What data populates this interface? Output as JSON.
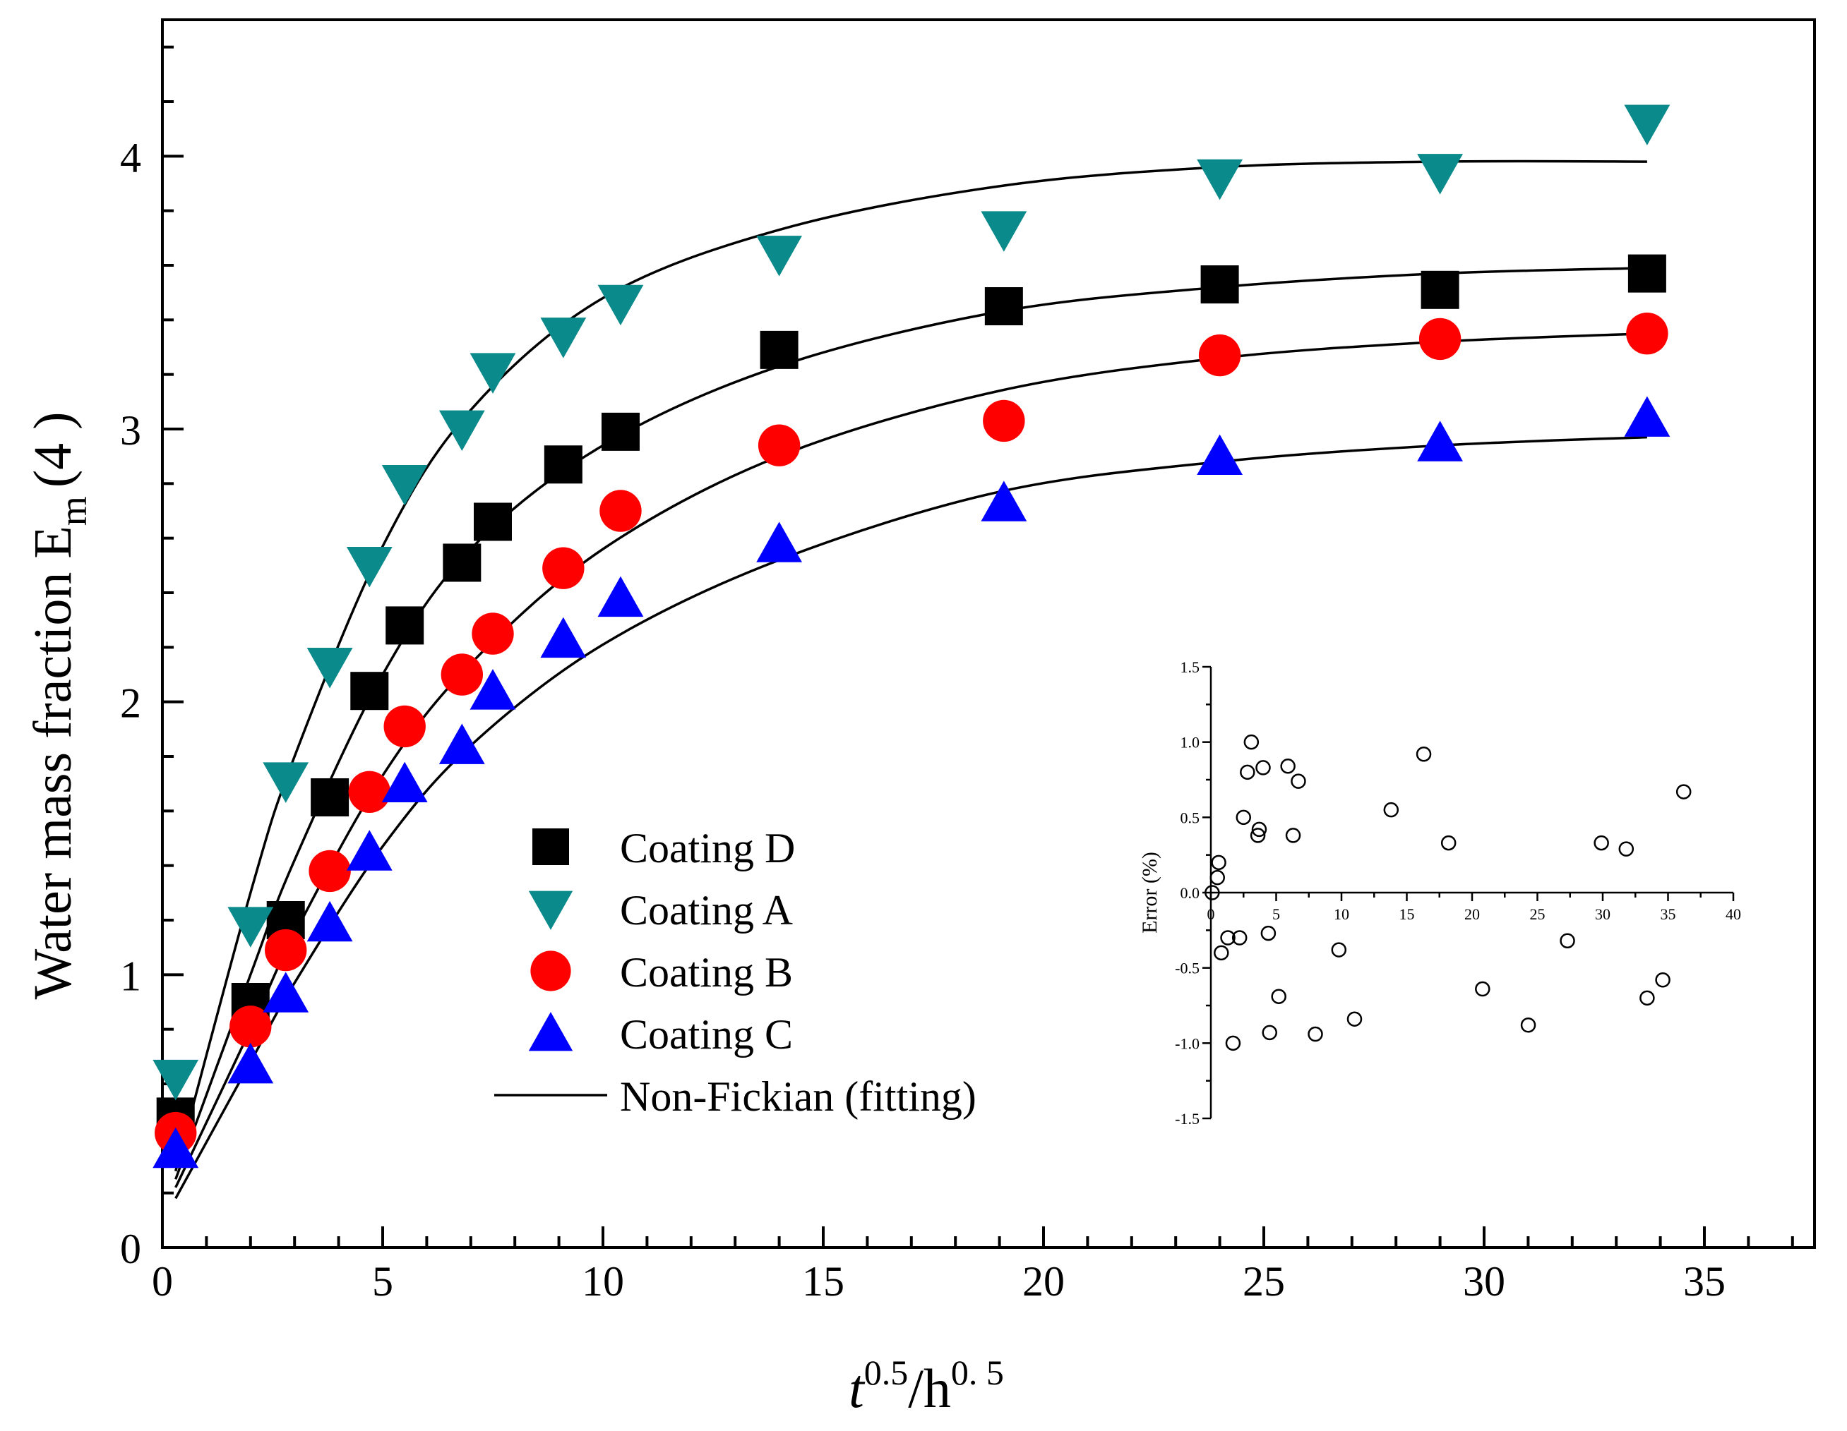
{
  "chart_data": {
    "type": "scatter",
    "xlabel": {
      "base1": "t",
      "sup1": "0.5",
      "mid": "/h",
      "sup2": "0. 5"
    },
    "ylabel": {
      "main": "Water mass fraction  E",
      "sub": "m",
      "tail": "(4 )"
    },
    "xlim": [
      0,
      37.5
    ],
    "ylim": [
      0,
      4.5
    ],
    "x_ticks": [
      "0",
      "5",
      "10",
      "15",
      "20",
      "25",
      "30",
      "35"
    ],
    "y_ticks": [
      "0",
      "1",
      "2",
      "3",
      "4"
    ],
    "series": [
      {
        "name": "Coating D",
        "marker": "square",
        "color": "#000000",
        "x": [
          0.3,
          2.0,
          2.8,
          3.8,
          4.7,
          5.5,
          6.8,
          7.5,
          9.1,
          10.4,
          14.0,
          19.1,
          24.0,
          29.0,
          33.7
        ],
        "y": [
          0.48,
          0.9,
          1.2,
          1.65,
          2.04,
          2.28,
          2.51,
          2.66,
          2.87,
          2.99,
          3.29,
          3.45,
          3.53,
          3.51,
          3.57
        ]
      },
      {
        "name": "Coating A",
        "marker": "triangle-down",
        "color": "#0a8a8a",
        "x": [
          0.3,
          2.0,
          2.8,
          3.8,
          4.7,
          5.5,
          6.8,
          7.5,
          9.1,
          10.4,
          14.0,
          19.1,
          24.0,
          29.0,
          33.7
        ],
        "y": [
          0.62,
          1.18,
          1.71,
          2.13,
          2.5,
          2.8,
          3.0,
          3.21,
          3.34,
          3.46,
          3.64,
          3.73,
          3.92,
          3.94,
          4.12
        ]
      },
      {
        "name": "Coating B",
        "marker": "circle",
        "color": "#ff0000",
        "x": [
          0.3,
          2.0,
          2.8,
          3.8,
          4.7,
          5.5,
          6.8,
          7.5,
          9.1,
          10.4,
          14.0,
          19.1,
          24.0,
          29.0,
          33.7
        ],
        "y": [
          0.42,
          0.81,
          1.09,
          1.38,
          1.67,
          1.91,
          2.1,
          2.25,
          2.49,
          2.7,
          2.94,
          3.03,
          3.27,
          3.33,
          3.35
        ]
      },
      {
        "name": "Coating C",
        "marker": "triangle-up",
        "color": "#0000ff",
        "x": [
          0.3,
          2.0,
          2.8,
          3.8,
          4.7,
          5.5,
          6.8,
          7.5,
          9.1,
          10.4,
          14.0,
          19.1,
          24.0,
          29.0,
          33.7
        ],
        "y": [
          0.36,
          0.67,
          0.93,
          1.19,
          1.45,
          1.7,
          1.84,
          2.04,
          2.23,
          2.38,
          2.58,
          2.73,
          2.9,
          2.95,
          3.04
        ]
      }
    ],
    "fits": [
      {
        "for": "Coating A",
        "x": [
          0.3,
          2.0,
          3.0,
          5.0,
          7.0,
          10.0,
          14.0,
          19.0,
          24.0,
          29.0,
          33.7
        ],
        "y": [
          0.28,
          1.3,
          1.8,
          2.57,
          3.07,
          3.48,
          3.73,
          3.89,
          3.96,
          3.98,
          3.98
        ]
      },
      {
        "for": "Coating D",
        "x": [
          0.3,
          2.0,
          3.0,
          5.0,
          7.0,
          10.0,
          14.0,
          19.0,
          24.0,
          29.0,
          33.7
        ],
        "y": [
          0.25,
          1.0,
          1.42,
          2.1,
          2.56,
          2.94,
          3.23,
          3.43,
          3.52,
          3.57,
          3.59
        ]
      },
      {
        "for": "Coating B",
        "x": [
          0.3,
          2.0,
          3.0,
          5.0,
          7.0,
          10.0,
          14.0,
          19.0,
          24.0,
          29.0,
          33.7
        ],
        "y": [
          0.22,
          0.8,
          1.15,
          1.73,
          2.14,
          2.56,
          2.9,
          3.14,
          3.26,
          3.32,
          3.35
        ]
      },
      {
        "for": "Coating C",
        "x": [
          0.3,
          2.0,
          3.0,
          5.0,
          7.0,
          10.0,
          14.0,
          19.0,
          24.0,
          29.0,
          33.7
        ],
        "y": [
          0.18,
          0.68,
          0.97,
          1.47,
          1.84,
          2.21,
          2.52,
          2.77,
          2.88,
          2.94,
          2.97
        ]
      }
    ],
    "legend": {
      "position": "center-left",
      "items": [
        "Coating D",
        "Coating A",
        "Coating B",
        "Coating C"
      ],
      "fit_label": "Non-Fickian  (fitting)"
    },
    "inset": {
      "type": "scatter",
      "ylabel": "Error (%)",
      "xlim": [
        0,
        40
      ],
      "ylim": [
        -1.5,
        1.5
      ],
      "x_ticks": [
        "0",
        "5",
        "10",
        "15",
        "20",
        "25",
        "30",
        "35",
        "40"
      ],
      "y_ticks": [
        "1.5",
        "1.0",
        "0.5",
        "0.0",
        "-0.5",
        "-1.0",
        "-1.5"
      ],
      "points": {
        "x": [
          0.1,
          0.5,
          0.6,
          0.8,
          1.3,
          1.7,
          2.2,
          2.5,
          2.8,
          3.1,
          3.6,
          3.7,
          4.0,
          4.4,
          4.5,
          5.2,
          5.9,
          6.3,
          6.7,
          8.0,
          9.8,
          11.0,
          13.8,
          16.3,
          18.2,
          20.8,
          24.3,
          27.3,
          29.9,
          31.8,
          33.4,
          34.6,
          36.2
        ],
        "y": [
          0.0,
          0.1,
          0.2,
          -0.4,
          -0.3,
          -1.0,
          -0.3,
          0.5,
          0.8,
          1.0,
          0.38,
          0.42,
          0.83,
          -0.27,
          -0.93,
          -0.69,
          0.84,
          0.38,
          0.74,
          -0.94,
          -0.38,
          -0.84,
          0.55,
          0.92,
          0.33,
          -0.64,
          -0.88,
          -0.32,
          0.33,
          0.29,
          -0.7,
          -0.58,
          0.67
        ]
      }
    }
  }
}
